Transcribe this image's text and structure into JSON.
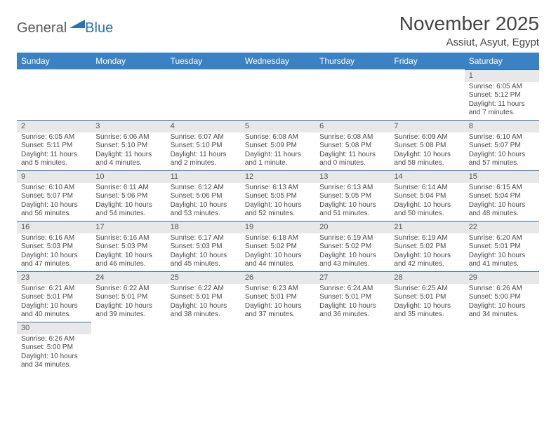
{
  "logo": {
    "general": "General",
    "blue": "Blue",
    "triangle_color": "#2a72b5"
  },
  "title": "November 2025",
  "location": "Assiut, Asyut, Egypt",
  "header_bg": "#3b82c4",
  "header_fg": "#ffffff",
  "daynum_bg": "#e8e8e8",
  "rule_color": "#2a72b5",
  "text_color": "#4a4a4a",
  "weekdays": [
    "Sunday",
    "Monday",
    "Tuesday",
    "Wednesday",
    "Thursday",
    "Friday",
    "Saturday"
  ],
  "weeks": [
    [
      null,
      null,
      null,
      null,
      null,
      null,
      {
        "n": "1",
        "sunrise": "6:05 AM",
        "sunset": "5:12 PM",
        "daylight": "11 hours and 7 minutes."
      }
    ],
    [
      {
        "n": "2",
        "sunrise": "6:05 AM",
        "sunset": "5:11 PM",
        "daylight": "11 hours and 5 minutes."
      },
      {
        "n": "3",
        "sunrise": "6:06 AM",
        "sunset": "5:10 PM",
        "daylight": "11 hours and 4 minutes."
      },
      {
        "n": "4",
        "sunrise": "6:07 AM",
        "sunset": "5:10 PM",
        "daylight": "11 hours and 2 minutes."
      },
      {
        "n": "5",
        "sunrise": "6:08 AM",
        "sunset": "5:09 PM",
        "daylight": "11 hours and 1 minute."
      },
      {
        "n": "6",
        "sunrise": "6:08 AM",
        "sunset": "5:08 PM",
        "daylight": "11 hours and 0 minutes."
      },
      {
        "n": "7",
        "sunrise": "6:09 AM",
        "sunset": "5:08 PM",
        "daylight": "10 hours and 58 minutes."
      },
      {
        "n": "8",
        "sunrise": "6:10 AM",
        "sunset": "5:07 PM",
        "daylight": "10 hours and 57 minutes."
      }
    ],
    [
      {
        "n": "9",
        "sunrise": "6:10 AM",
        "sunset": "5:07 PM",
        "daylight": "10 hours and 56 minutes."
      },
      {
        "n": "10",
        "sunrise": "6:11 AM",
        "sunset": "5:06 PM",
        "daylight": "10 hours and 54 minutes."
      },
      {
        "n": "11",
        "sunrise": "6:12 AM",
        "sunset": "5:06 PM",
        "daylight": "10 hours and 53 minutes."
      },
      {
        "n": "12",
        "sunrise": "6:13 AM",
        "sunset": "5:05 PM",
        "daylight": "10 hours and 52 minutes."
      },
      {
        "n": "13",
        "sunrise": "6:13 AM",
        "sunset": "5:05 PM",
        "daylight": "10 hours and 51 minutes."
      },
      {
        "n": "14",
        "sunrise": "6:14 AM",
        "sunset": "5:04 PM",
        "daylight": "10 hours and 50 minutes."
      },
      {
        "n": "15",
        "sunrise": "6:15 AM",
        "sunset": "5:04 PM",
        "daylight": "10 hours and 48 minutes."
      }
    ],
    [
      {
        "n": "16",
        "sunrise": "6:16 AM",
        "sunset": "5:03 PM",
        "daylight": "10 hours and 47 minutes."
      },
      {
        "n": "17",
        "sunrise": "6:16 AM",
        "sunset": "5:03 PM",
        "daylight": "10 hours and 46 minutes."
      },
      {
        "n": "18",
        "sunrise": "6:17 AM",
        "sunset": "5:03 PM",
        "daylight": "10 hours and 45 minutes."
      },
      {
        "n": "19",
        "sunrise": "6:18 AM",
        "sunset": "5:02 PM",
        "daylight": "10 hours and 44 minutes."
      },
      {
        "n": "20",
        "sunrise": "6:19 AM",
        "sunset": "5:02 PM",
        "daylight": "10 hours and 43 minutes."
      },
      {
        "n": "21",
        "sunrise": "6:19 AM",
        "sunset": "5:02 PM",
        "daylight": "10 hours and 42 minutes."
      },
      {
        "n": "22",
        "sunrise": "6:20 AM",
        "sunset": "5:01 PM",
        "daylight": "10 hours and 41 minutes."
      }
    ],
    [
      {
        "n": "23",
        "sunrise": "6:21 AM",
        "sunset": "5:01 PM",
        "daylight": "10 hours and 40 minutes."
      },
      {
        "n": "24",
        "sunrise": "6:22 AM",
        "sunset": "5:01 PM",
        "daylight": "10 hours and 39 minutes."
      },
      {
        "n": "25",
        "sunrise": "6:22 AM",
        "sunset": "5:01 PM",
        "daylight": "10 hours and 38 minutes."
      },
      {
        "n": "26",
        "sunrise": "6:23 AM",
        "sunset": "5:01 PM",
        "daylight": "10 hours and 37 minutes."
      },
      {
        "n": "27",
        "sunrise": "6:24 AM",
        "sunset": "5:01 PM",
        "daylight": "10 hours and 36 minutes."
      },
      {
        "n": "28",
        "sunrise": "6:25 AM",
        "sunset": "5:01 PM",
        "daylight": "10 hours and 35 minutes."
      },
      {
        "n": "29",
        "sunrise": "6:26 AM",
        "sunset": "5:00 PM",
        "daylight": "10 hours and 34 minutes."
      }
    ],
    [
      {
        "n": "30",
        "sunrise": "6:26 AM",
        "sunset": "5:00 PM",
        "daylight": "10 hours and 34 minutes."
      },
      null,
      null,
      null,
      null,
      null,
      null
    ]
  ],
  "labels": {
    "sunrise": "Sunrise: ",
    "sunset": "Sunset: ",
    "daylight": "Daylight: "
  }
}
